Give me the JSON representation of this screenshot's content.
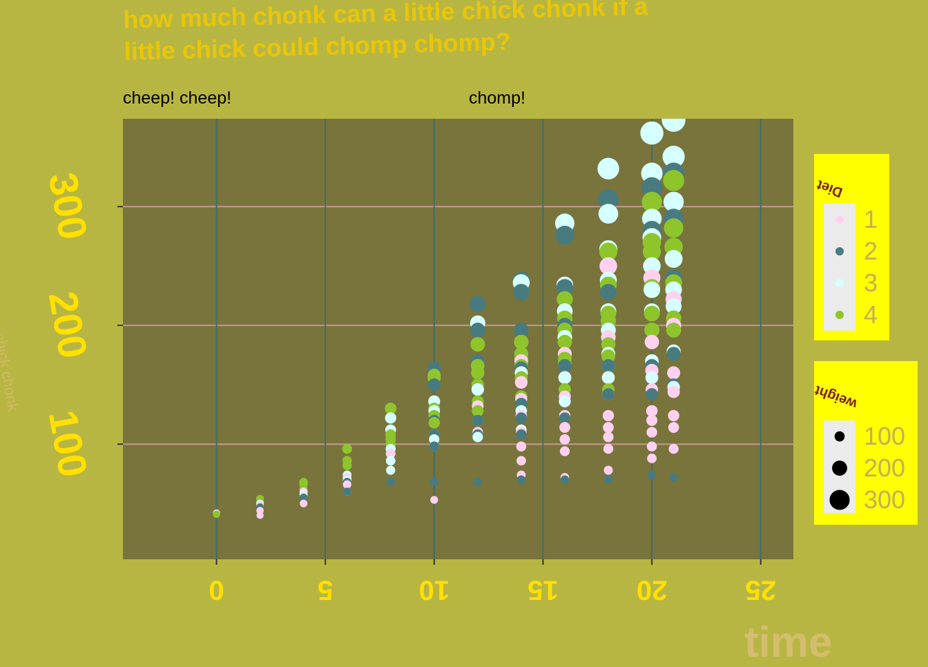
{
  "title": "how much chonk can a little chick chonk if a\nlittle chick could chomp chomp?",
  "facets": [
    "cheep! cheep!",
    "chomp!"
  ],
  "colors": {
    "background": "#b8b642",
    "panel": "#78743c",
    "vgrid": "#3f6d6a",
    "hgrid": "#c49a8e",
    "title": "#e8c60a",
    "tick_text": "#ffe000",
    "legend_bg": "#ffff00",
    "diet_1": "#ffd1f0",
    "diet_2": "#477b80",
    "diet_3": "#d6ffff",
    "diet_4": "#8dc52b"
  },
  "legend_diet": {
    "title": "Diet",
    "items": [
      {
        "label": "1",
        "color": "#ffd1f0"
      },
      {
        "label": "2",
        "color": "#477b80"
      },
      {
        "label": "3",
        "color": "#d6ffff"
      },
      {
        "label": "4",
        "color": "#8dc52b"
      }
    ]
  },
  "legend_weight": {
    "title": "weight",
    "items": [
      {
        "label": "100",
        "value": 100
      },
      {
        "label": "200",
        "value": 200
      },
      {
        "label": "300",
        "value": 300
      }
    ]
  },
  "chart_data": {
    "type": "scatter",
    "title": "how much chonk can a little chick chonk if a\nlittle chick could chomp chomp?",
    "xlabel": "time",
    "ylabel": "chick chonk",
    "xlim": [
      -4.3,
      26.5
    ],
    "ylim": [
      3,
      374
    ],
    "x_ticks": [
      0,
      5,
      10,
      15,
      20,
      25
    ],
    "y_ticks": [
      100,
      200,
      300
    ],
    "grid": true,
    "legend_position": "right",
    "color_by": "Diet",
    "size_by": "weight",
    "series": [
      {
        "name": "1",
        "points": [
          [
            0,
            42
          ],
          [
            2,
            40
          ],
          [
            2,
            44
          ],
          [
            2,
            49
          ],
          [
            4,
            50
          ],
          [
            4,
            56
          ],
          [
            4,
            60
          ],
          [
            6,
            60
          ],
          [
            6,
            66
          ],
          [
            6,
            72
          ],
          [
            8,
            78
          ],
          [
            8,
            86
          ],
          [
            8,
            92
          ],
          [
            10,
            53
          ],
          [
            10,
            98
          ],
          [
            10,
            108
          ],
          [
            10,
            118
          ],
          [
            12,
            110
          ],
          [
            12,
            120
          ],
          [
            12,
            132
          ],
          [
            12,
            146
          ],
          [
            12,
            166
          ],
          [
            14,
            74
          ],
          [
            14,
            86
          ],
          [
            14,
            98
          ],
          [
            14,
            110
          ],
          [
            14,
            124
          ],
          [
            14,
            138
          ],
          [
            14,
            152
          ],
          [
            14,
            170
          ],
          [
            14,
            186
          ],
          [
            16,
            72
          ],
          [
            16,
            94
          ],
          [
            16,
            104
          ],
          [
            16,
            114
          ],
          [
            16,
            124
          ],
          [
            16,
            140
          ],
          [
            16,
            156
          ],
          [
            16,
            176
          ],
          [
            18,
            78
          ],
          [
            18,
            96
          ],
          [
            18,
            106
          ],
          [
            18,
            114
          ],
          [
            18,
            124
          ],
          [
            18,
            142
          ],
          [
            18,
            166
          ],
          [
            18,
            190
          ],
          [
            18,
            212
          ],
          [
            18,
            250
          ],
          [
            20,
            88
          ],
          [
            20,
            98
          ],
          [
            20,
            110
          ],
          [
            20,
            120
          ],
          [
            20,
            128
          ],
          [
            20,
            146
          ],
          [
            20,
            162
          ],
          [
            20,
            186
          ],
          [
            20,
            210
          ],
          [
            20,
            240
          ],
          [
            21,
            96
          ],
          [
            21,
            114
          ],
          [
            21,
            124
          ],
          [
            21,
            144
          ],
          [
            21,
            160
          ],
          [
            21,
            178
          ],
          [
            21,
            200
          ],
          [
            21,
            222
          ]
        ]
      },
      {
        "name": "2",
        "points": [
          [
            0,
            41
          ],
          [
            2,
            47
          ],
          [
            4,
            55
          ],
          [
            6,
            60
          ],
          [
            6,
            68
          ],
          [
            8,
            68
          ],
          [
            10,
            68
          ],
          [
            10,
            98
          ],
          [
            10,
            108
          ],
          [
            10,
            120
          ],
          [
            10,
            150
          ],
          [
            10,
            164
          ],
          [
            12,
            68
          ],
          [
            12,
            108
          ],
          [
            12,
            120
          ],
          [
            12,
            150
          ],
          [
            12,
            170
          ],
          [
            12,
            196
          ],
          [
            12,
            218
          ],
          [
            14,
            70
          ],
          [
            14,
            108
          ],
          [
            14,
            122
          ],
          [
            14,
            134
          ],
          [
            14,
            164
          ],
          [
            14,
            196
          ],
          [
            14,
            228
          ],
          [
            14,
            238
          ],
          [
            16,
            70
          ],
          [
            16,
            122
          ],
          [
            16,
            146
          ],
          [
            16,
            166
          ],
          [
            16,
            200
          ],
          [
            16,
            232
          ],
          [
            16,
            276
          ],
          [
            18,
            70
          ],
          [
            18,
            142
          ],
          [
            18,
            166
          ],
          [
            18,
            196
          ],
          [
            18,
            228
          ],
          [
            18,
            306
          ],
          [
            20,
            74
          ],
          [
            20,
            142
          ],
          [
            20,
            166
          ],
          [
            20,
            196
          ],
          [
            20,
            230
          ],
          [
            20,
            280
          ],
          [
            20,
            316
          ],
          [
            21,
            72
          ],
          [
            21,
            150
          ],
          [
            21,
            176
          ],
          [
            21,
            206
          ],
          [
            21,
            240
          ],
          [
            21,
            290
          ],
          [
            21,
            328
          ]
        ]
      },
      {
        "name": "3",
        "points": [
          [
            0,
            41
          ],
          [
            2,
            50
          ],
          [
            4,
            58
          ],
          [
            6,
            70
          ],
          [
            6,
            74
          ],
          [
            8,
            78
          ],
          [
            8,
            86
          ],
          [
            8,
            96
          ],
          [
            8,
            112
          ],
          [
            8,
            122
          ],
          [
            10,
            104
          ],
          [
            10,
            118
          ],
          [
            10,
            128
          ],
          [
            10,
            136
          ],
          [
            10,
            156
          ],
          [
            12,
            106
          ],
          [
            12,
            128
          ],
          [
            12,
            146
          ],
          [
            12,
            160
          ],
          [
            12,
            184
          ],
          [
            12,
            202
          ],
          [
            14,
            112
          ],
          [
            14,
            128
          ],
          [
            14,
            140
          ],
          [
            14,
            160
          ],
          [
            14,
            176
          ],
          [
            14,
            236
          ],
          [
            16,
            136
          ],
          [
            16,
            156
          ],
          [
            16,
            190
          ],
          [
            16,
            212
          ],
          [
            16,
            234
          ],
          [
            16,
            286
          ],
          [
            18,
            156
          ],
          [
            18,
            176
          ],
          [
            18,
            196
          ],
          [
            18,
            212
          ],
          [
            18,
            238
          ],
          [
            18,
            264
          ],
          [
            18,
            294
          ],
          [
            18,
            332
          ],
          [
            20,
            156
          ],
          [
            20,
            170
          ],
          [
            20,
            196
          ],
          [
            20,
            212
          ],
          [
            20,
            230
          ],
          [
            20,
            250
          ],
          [
            20,
            274
          ],
          [
            20,
            290
          ],
          [
            20,
            328
          ],
          [
            20,
            362
          ],
          [
            21,
            148
          ],
          [
            21,
            178
          ],
          [
            21,
            216
          ],
          [
            21,
            230
          ],
          [
            21,
            256
          ],
          [
            21,
            282
          ],
          [
            21,
            304
          ],
          [
            21,
            342
          ],
          [
            21,
            373
          ]
        ]
      },
      {
        "name": "4",
        "points": [
          [
            0,
            41
          ],
          [
            2,
            51
          ],
          [
            2,
            54
          ],
          [
            4,
            62
          ],
          [
            4,
            66
          ],
          [
            4,
            68
          ],
          [
            6,
            82
          ],
          [
            6,
            86
          ],
          [
            6,
            96
          ],
          [
            8,
            100
          ],
          [
            8,
            104
          ],
          [
            8,
            108
          ],
          [
            8,
            130
          ],
          [
            10,
            118
          ],
          [
            10,
            124
          ],
          [
            10,
            130
          ],
          [
            10,
            156
          ],
          [
            10,
            158
          ],
          [
            12,
            128
          ],
          [
            12,
            136
          ],
          [
            12,
            150
          ],
          [
            12,
            160
          ],
          [
            12,
            166
          ],
          [
            12,
            184
          ],
          [
            14,
            140
          ],
          [
            14,
            156
          ],
          [
            14,
            166
          ],
          [
            14,
            172
          ],
          [
            14,
            176
          ],
          [
            14,
            186
          ],
          [
            16,
            146
          ],
          [
            16,
            168
          ],
          [
            16,
            172
          ],
          [
            16,
            186
          ],
          [
            16,
            196
          ],
          [
            16,
            206
          ],
          [
            16,
            222
          ],
          [
            18,
            146
          ],
          [
            18,
            174
          ],
          [
            18,
            184
          ],
          [
            18,
            204
          ],
          [
            18,
            210
          ],
          [
            18,
            234
          ],
          [
            18,
            262
          ],
          [
            20,
            196
          ],
          [
            20,
            210
          ],
          [
            20,
            232
          ],
          [
            20,
            262
          ],
          [
            20,
            270
          ],
          [
            20,
            304
          ],
          [
            21,
            196
          ],
          [
            21,
            206
          ],
          [
            21,
            236
          ],
          [
            21,
            266
          ],
          [
            21,
            282
          ],
          [
            21,
            322
          ]
        ]
      }
    ]
  }
}
